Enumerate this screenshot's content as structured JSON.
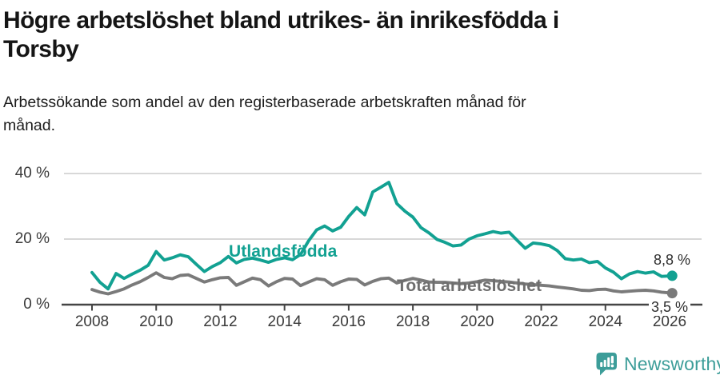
{
  "header": {
    "title_lines": [
      "Högre arbetslöshet bland utrikes- än inrikesfödda i",
      "Torsby"
    ],
    "subtitle_lines": [
      "Arbetssökande som andel av den registerbaserade arbetskraften månad för",
      "månad."
    ]
  },
  "chart_data": {
    "type": "line",
    "title": "Högre arbetslöshet bland utrikes- än inrikesfödda i Torsby",
    "subtitle": "Arbetssökande som andel av den registerbaserade arbetskraften månad för månad.",
    "unit": "%",
    "grid": "horizontal",
    "legend_position": "inline-labels",
    "ylim": [
      0,
      40
    ],
    "y_ticks": [
      0,
      20,
      40
    ],
    "y_tick_labels_top_down": [
      "40 %",
      "20 %",
      "0 %"
    ],
    "x_ticks": [
      2008,
      2010,
      2012,
      2014,
      2016,
      2018,
      2020,
      2022,
      2024,
      2026
    ],
    "x_tick_labels": [
      "2008",
      "2010",
      "2012",
      "2014",
      "2016",
      "2018",
      "2020",
      "2022",
      "2024",
      "2026"
    ],
    "x": [
      2008,
      2008.25,
      2008.5,
      2008.75,
      2009,
      2009.25,
      2009.5,
      2009.75,
      2010,
      2010.25,
      2010.5,
      2010.75,
      2011,
      2011.25,
      2011.5,
      2011.75,
      2012,
      2012.25,
      2012.5,
      2012.75,
      2013,
      2013.25,
      2013.5,
      2013.75,
      2014,
      2014.25,
      2014.5,
      2014.75,
      2015,
      2015.25,
      2015.5,
      2015.75,
      2016,
      2016.25,
      2016.5,
      2016.75,
      2017,
      2017.25,
      2017.5,
      2017.75,
      2018,
      2018.25,
      2018.5,
      2018.75,
      2019,
      2019.25,
      2019.5,
      2019.75,
      2020,
      2020.25,
      2020.5,
      2020.75,
      2021,
      2021.25,
      2021.5,
      2021.75,
      2022,
      2022.25,
      2022.5,
      2022.75,
      2023,
      2023.25,
      2023.5,
      2023.75,
      2024,
      2024.25,
      2024.5,
      2024.75,
      2025,
      2025.25,
      2025.5,
      2025.75,
      2026.08
    ],
    "series": [
      {
        "name": "Utlandsfödda",
        "color": "#12a192",
        "end_label": "8,8 %",
        "end_value": 8.8,
        "values": [
          9.8,
          6.8,
          4.8,
          9.5,
          8.0,
          9.3,
          10.5,
          12.0,
          16.2,
          13.6,
          14.3,
          15.2,
          14.6,
          12.3,
          10.1,
          11.6,
          12.8,
          14.7,
          12.7,
          13.8,
          14.2,
          13.6,
          12.9,
          13.8,
          14.3,
          13.7,
          15.3,
          19.5,
          22.8,
          24.0,
          22.5,
          23.6,
          26.9,
          29.6,
          27.4,
          34.4,
          35.8,
          37.3,
          30.8,
          28.5,
          26.7,
          23.5,
          21.9,
          19.9,
          19.0,
          17.9,
          18.2,
          20.0,
          21.0,
          21.6,
          22.3,
          21.8,
          22.1,
          19.6,
          17.2,
          18.8,
          18.5,
          18.0,
          16.5,
          14.0,
          13.6,
          13.9,
          12.8,
          13.2,
          11.2,
          9.9,
          7.9,
          9.4,
          10.1,
          9.6,
          10.0,
          8.6,
          8.8
        ]
      },
      {
        "name": "Total arbetslöshet",
        "color": "#7a7a7a",
        "end_label": "3,5 %",
        "end_value": 3.5,
        "values": [
          4.6,
          3.8,
          3.3,
          4.0,
          4.8,
          6.0,
          7.0,
          8.3,
          9.7,
          8.3,
          7.9,
          8.9,
          9.1,
          8.0,
          6.9,
          7.6,
          8.2,
          8.3,
          5.9,
          7.0,
          8.1,
          7.6,
          5.7,
          7.0,
          8.0,
          7.8,
          5.8,
          6.9,
          7.9,
          7.6,
          5.9,
          7.0,
          7.8,
          7.7,
          6.0,
          7.1,
          7.9,
          8.1,
          6.6,
          7.4,
          8.0,
          7.5,
          6.9,
          6.8,
          6.8,
          6.6,
          6.4,
          6.6,
          7.0,
          7.5,
          7.3,
          7.1,
          6.9,
          6.6,
          6.3,
          6.1,
          5.9,
          5.7,
          5.4,
          5.1,
          4.8,
          4.4,
          4.3,
          4.6,
          4.7,
          4.2,
          3.9,
          4.1,
          4.3,
          4.4,
          4.2,
          3.8,
          3.5
        ]
      }
    ]
  },
  "colors": {
    "accent_teal": "#12a192",
    "line_gray": "#7a7a7a",
    "grid": "#d8d8d8",
    "axis": "#454545",
    "brand_teal": "#3c9d99"
  },
  "footer": {
    "brand": "Newsworthy",
    "logo_icon": "newsworthy-chart-speech-bubble-icon"
  }
}
